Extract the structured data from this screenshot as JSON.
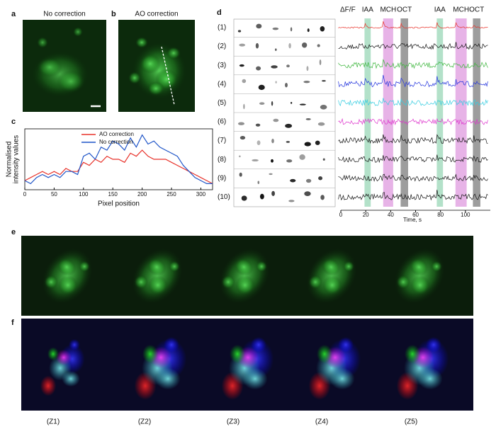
{
  "panels": {
    "a": {
      "label": "a",
      "title": "No correction"
    },
    "b": {
      "label": "b",
      "title": "AO correction"
    },
    "c": {
      "label": "c"
    },
    "d": {
      "label": "d"
    },
    "e": {
      "label": "e"
    },
    "f": {
      "label": "f"
    }
  },
  "chart_data": [
    {
      "type": "line",
      "x_label": "Pixel position",
      "y_label": [
        "Normalised",
        "intensity values"
      ],
      "xlim": [
        0,
        320
      ],
      "ylim": [
        0,
        1
      ],
      "xticks": [
        0,
        50,
        100,
        150,
        200,
        250,
        300
      ],
      "x": [
        0,
        10,
        20,
        30,
        40,
        50,
        60,
        70,
        80,
        90,
        100,
        110,
        120,
        130,
        140,
        150,
        160,
        170,
        180,
        190,
        200,
        210,
        220,
        230,
        240,
        250,
        260,
        270,
        280,
        290,
        300,
        310,
        320
      ],
      "series": [
        {
          "name": "AO correction",
          "color": "#e8322a",
          "values": [
            0.15,
            0.2,
            0.25,
            0.3,
            0.25,
            0.3,
            0.25,
            0.35,
            0.3,
            0.3,
            0.45,
            0.4,
            0.5,
            0.45,
            0.55,
            0.5,
            0.5,
            0.45,
            0.6,
            0.55,
            0.65,
            0.55,
            0.5,
            0.5,
            0.5,
            0.45,
            0.4,
            0.35,
            0.3,
            0.25,
            0.2,
            0.15,
            0.1
          ]
        },
        {
          "name": "No correction",
          "color": "#1f55c8",
          "values": [
            0.15,
            0.1,
            0.2,
            0.25,
            0.2,
            0.25,
            0.2,
            0.3,
            0.3,
            0.25,
            0.55,
            0.6,
            0.5,
            0.7,
            0.65,
            0.8,
            0.75,
            0.65,
            0.85,
            0.7,
            0.9,
            0.75,
            0.8,
            0.7,
            0.65,
            0.6,
            0.55,
            0.4,
            0.3,
            0.2,
            0.15,
            0.1,
            0.1
          ]
        }
      ]
    },
    {
      "type": "trace",
      "y_label": "ΔF/F",
      "x_label": "Time, s",
      "categories": [
        "(1)",
        "(2)",
        "(3)",
        "(4)",
        "(5)",
        "(6)",
        "(7)",
        "(8)",
        "(9)",
        "(10)"
      ],
      "colors": [
        "#e8322a",
        "#111111",
        "#3ab53a",
        "#2233dd",
        "#33cce0",
        "#dd33cc",
        "#111111",
        "#111111",
        "#111111",
        "#111111"
      ],
      "xlim": [
        -2,
        118
      ],
      "xticks": [
        0,
        20,
        40,
        60,
        80,
        100
      ],
      "stimuli": [
        {
          "label": "IAA",
          "start": 19,
          "end": 24,
          "color": "#a6dcc0"
        },
        {
          "label": "MCH",
          "start": 34,
          "end": 42,
          "color": "#e3a6e3"
        },
        {
          "label": "OCT",
          "start": 48,
          "end": 54,
          "color": "#8c8c8c"
        },
        {
          "label": "IAA",
          "start": 77,
          "end": 82,
          "color": "#a6dcc0"
        },
        {
          "label": "MCH",
          "start": 92,
          "end": 101,
          "color": "#e3a6e3"
        },
        {
          "label": "OCT",
          "start": 106,
          "end": 112,
          "color": "#8c8c8c"
        }
      ]
    }
  ],
  "z_labels": [
    "(Z1)",
    "(Z2)",
    "(Z3)",
    "(Z4)",
    "(Z5)"
  ]
}
